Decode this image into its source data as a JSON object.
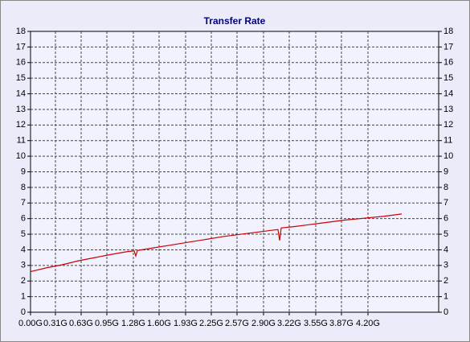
{
  "chart_data": {
    "type": "line",
    "title": "Transfer Rate",
    "x": [
      0,
      0.2,
      0.4,
      0.6,
      0.8,
      1.0,
      1.2,
      1.29,
      1.31,
      1.33,
      1.5,
      1.8,
      2.1,
      2.4,
      2.7,
      3.0,
      3.08,
      3.1,
      3.12,
      3.3,
      3.6,
      3.9,
      4.2,
      4.4,
      4.62
    ],
    "series": [
      {
        "color": "#cc0000",
        "values": [
          2.6,
          2.85,
          3.05,
          3.3,
          3.5,
          3.7,
          3.88,
          3.93,
          3.6,
          3.96,
          4.1,
          4.35,
          4.6,
          4.85,
          5.05,
          5.25,
          5.3,
          4.6,
          5.4,
          5.5,
          5.7,
          5.9,
          6.05,
          6.15,
          6.3
        ]
      }
    ],
    "xlim": [
      0,
      5.08
    ],
    "xticks": [
      {
        "value": 0,
        "label": "0.00G"
      },
      {
        "value": 0.31,
        "label": "0.31G"
      },
      {
        "value": 0.63,
        "label": "0.63G"
      },
      {
        "value": 0.95,
        "label": "0.95G"
      },
      {
        "value": 1.28,
        "label": "1.28G"
      },
      {
        "value": 1.6,
        "label": "1.60G"
      },
      {
        "value": 1.93,
        "label": "1.93G"
      },
      {
        "value": 2.25,
        "label": "2.25G"
      },
      {
        "value": 2.57,
        "label": "2.57G"
      },
      {
        "value": 2.9,
        "label": "2.90G"
      },
      {
        "value": 3.22,
        "label": "3.22G"
      },
      {
        "value": 3.55,
        "label": "3.55G"
      },
      {
        "value": 3.87,
        "label": "3.87G"
      },
      {
        "value": 4.2,
        "label": "4.20G"
      }
    ],
    "ylim": [
      0,
      18
    ],
    "yticks": [
      0,
      1,
      2,
      3,
      4,
      5,
      6,
      7,
      8,
      9,
      10,
      11,
      12,
      13,
      14,
      15,
      16,
      17,
      18
    ],
    "grid": true
  }
}
